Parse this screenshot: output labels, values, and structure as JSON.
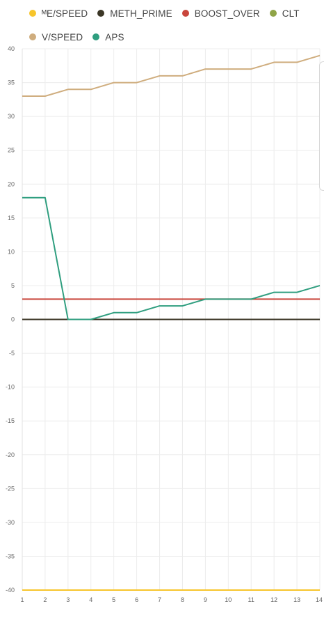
{
  "legend": [
    {
      "label": "ᴹE/SPEED",
      "color": "#f7c52b"
    },
    {
      "label": "METH_PRIME",
      "color": "#3b3626"
    },
    {
      "label": "BOOST_OVER",
      "color": "#c9463c"
    },
    {
      "label": "CLT",
      "color": "#8fa447"
    },
    {
      "label": "V/SPEED",
      "color": "#cfad7e"
    },
    {
      "label": "APS",
      "color": "#2f9e7f"
    }
  ],
  "chart_data": {
    "type": "line",
    "x": [
      1,
      2,
      3,
      4,
      5,
      6,
      7,
      8,
      9,
      10,
      11,
      12,
      13,
      14
    ],
    "xlim": [
      1,
      14
    ],
    "ylim": [
      -40,
      40
    ],
    "y_ticks": [
      40,
      35,
      30,
      25,
      20,
      15,
      10,
      5,
      0,
      -5,
      -10,
      -15,
      -20,
      -25,
      -30,
      -35,
      -40
    ],
    "x_ticks": [
      1,
      2,
      3,
      4,
      5,
      6,
      7,
      8,
      9,
      10,
      11,
      12,
      13,
      14
    ],
    "grid": true,
    "legend_position": "top",
    "series": [
      {
        "name": "ᴹE/SPEED",
        "color": "#f7c52b",
        "values": [
          -40,
          -40,
          -40,
          -40,
          -40,
          -40,
          -40,
          -40,
          -40,
          -40,
          -40,
          -40,
          -40,
          -40
        ]
      },
      {
        "name": "METH_PRIME",
        "color": "#3b3626",
        "values": [
          0,
          0,
          0,
          0,
          0,
          0,
          0,
          0,
          0,
          0,
          0,
          0,
          0,
          0
        ]
      },
      {
        "name": "BOOST_OVER",
        "color": "#c9463c",
        "values": [
          3,
          3,
          3,
          3,
          3,
          3,
          3,
          3,
          3,
          3,
          3,
          3,
          3,
          3
        ]
      },
      {
        "name": "CLT",
        "color": "#8fa447",
        "values": [
          0,
          0,
          0,
          0,
          0,
          0,
          0,
          0,
          0,
          0,
          0,
          0,
          0,
          0
        ]
      },
      {
        "name": "V/SPEED",
        "color": "#cfad7e",
        "values": [
          33,
          33,
          34,
          34,
          35,
          35,
          36,
          36,
          37,
          37,
          37,
          38,
          38,
          39
        ]
      },
      {
        "name": "APS",
        "color": "#2f9e7f",
        "values": [
          18,
          18,
          0,
          0,
          1,
          1,
          2,
          2,
          3,
          3,
          3,
          4,
          4,
          5
        ]
      }
    ]
  }
}
